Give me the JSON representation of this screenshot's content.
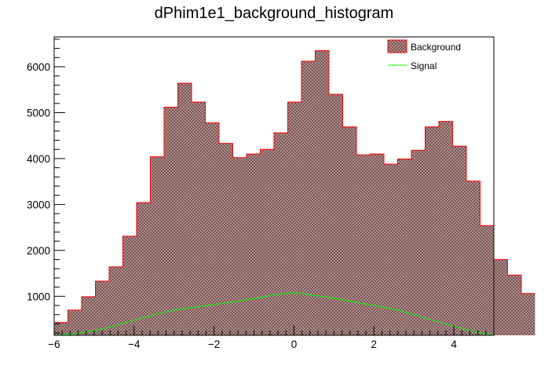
{
  "chart_data": {
    "type": "bar",
    "title": "dPhim1e1_background_histogram",
    "xlabel": "",
    "ylabel": "",
    "xlim": [
      -6,
      5
    ],
    "ylim": [
      150,
      6650
    ],
    "bin_width": 0.34375,
    "x_ticks": [
      -6,
      -4,
      -2,
      0,
      2,
      4
    ],
    "x_tick_labels": [
      "−6",
      "−4",
      "−2",
      "0",
      "2",
      "4"
    ],
    "y_ticks": [
      1000,
      2000,
      3000,
      4000,
      5000,
      6000
    ],
    "y_tick_labels": [
      "1000",
      "2000",
      "3000",
      "4000",
      "5000",
      "6000"
    ],
    "series": [
      {
        "name": "Background",
        "style": "hatched-bar",
        "fill_color": "#b08080",
        "line_color": "#ff0000",
        "values": [
          430,
          700,
          990,
          1330,
          1640,
          2310,
          3040,
          4040,
          5120,
          5640,
          5230,
          4780,
          4330,
          4020,
          4100,
          4200,
          4560,
          5230,
          6120,
          6350,
          5400,
          4690,
          4080,
          4100,
          3880,
          3990,
          4180,
          4690,
          4810,
          4270,
          3510,
          2540,
          1800,
          1460,
          1060
        ]
      },
      {
        "name": "Signal",
        "style": "line",
        "line_color": "#00ff00",
        "x": [
          -6,
          -5.5,
          -5,
          -4.5,
          -4,
          -3.5,
          -3,
          -2.5,
          -2,
          -1.5,
          -1,
          -0.5,
          0,
          0.5,
          1,
          1.5,
          2,
          2.5,
          3,
          3.5,
          4,
          4.5,
          5
        ],
        "values": [
          150,
          180,
          250,
          350,
          480,
          600,
          700,
          760,
          820,
          880,
          950,
          1030,
          1080,
          1020,
          960,
          880,
          800,
          720,
          600,
          470,
          350,
          230,
          150
        ]
      }
    ],
    "legend": {
      "placement": "top-right",
      "entries": [
        {
          "label": "Background",
          "marker": "hatched-box"
        },
        {
          "label": "Signal",
          "marker": "line"
        }
      ]
    },
    "grid": false
  }
}
